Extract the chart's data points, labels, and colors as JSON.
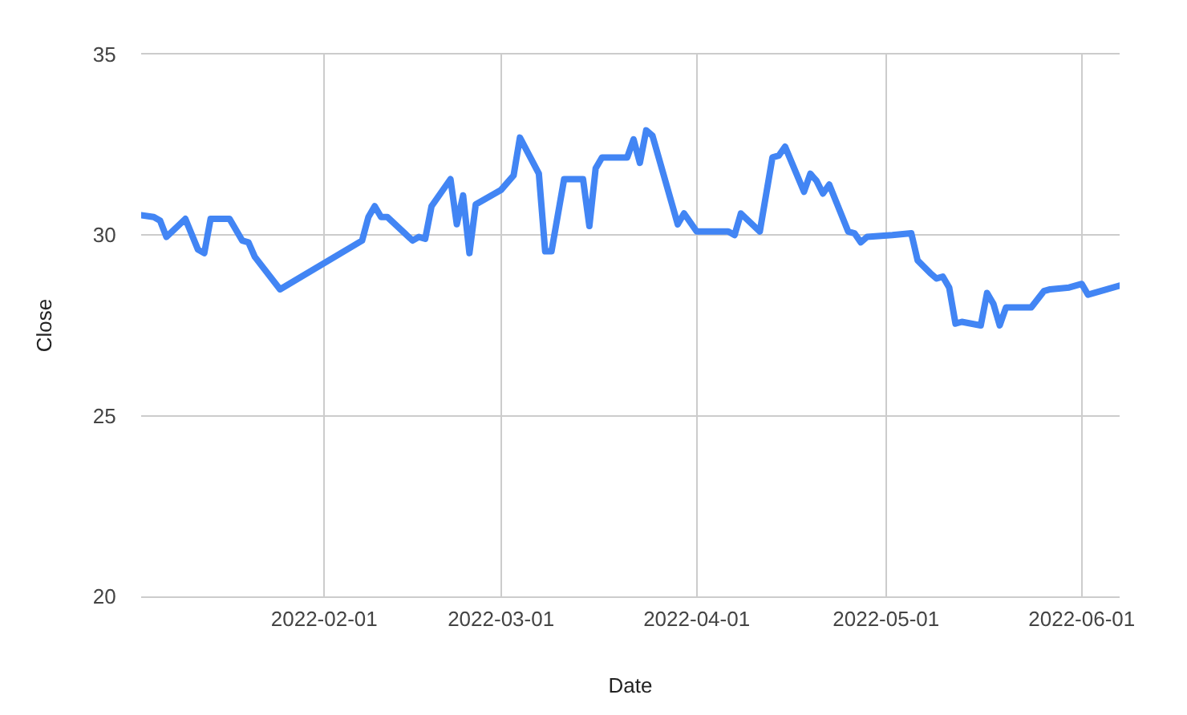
{
  "chart_data": {
    "type": "line",
    "xlabel": "Date",
    "ylabel": "Close",
    "x": [
      "2022-01-03",
      "2022-01-05",
      "2022-01-06",
      "2022-01-07",
      "2022-01-10",
      "2022-01-12",
      "2022-01-13",
      "2022-01-14",
      "2022-01-17",
      "2022-01-19",
      "2022-01-20",
      "2022-01-21",
      "2022-01-25",
      "2022-02-07",
      "2022-02-08",
      "2022-02-09",
      "2022-02-10",
      "2022-02-11",
      "2022-02-15",
      "2022-02-16",
      "2022-02-17",
      "2022-02-18",
      "2022-02-21",
      "2022-02-22",
      "2022-02-23",
      "2022-02-24",
      "2022-02-25",
      "2022-03-01",
      "2022-03-03",
      "2022-03-04",
      "2022-03-07",
      "2022-03-08",
      "2022-03-09",
      "2022-03-11",
      "2022-03-14",
      "2022-03-15",
      "2022-03-16",
      "2022-03-17",
      "2022-03-21",
      "2022-03-22",
      "2022-03-23",
      "2022-03-24",
      "2022-03-25",
      "2022-03-29",
      "2022-03-30",
      "2022-04-01",
      "2022-04-06",
      "2022-04-07",
      "2022-04-08",
      "2022-04-11",
      "2022-04-13",
      "2022-04-14",
      "2022-04-15",
      "2022-04-18",
      "2022-04-19",
      "2022-04-20",
      "2022-04-21",
      "2022-04-22",
      "2022-04-25",
      "2022-04-26",
      "2022-04-27",
      "2022-04-28",
      "2022-05-02",
      "2022-05-05",
      "2022-05-06",
      "2022-05-08",
      "2022-05-09",
      "2022-05-10",
      "2022-05-11",
      "2022-05-12",
      "2022-05-13",
      "2022-05-16",
      "2022-05-17",
      "2022-05-18",
      "2022-05-19",
      "2022-05-20",
      "2022-05-24",
      "2022-05-26",
      "2022-05-27",
      "2022-05-30",
      "2022-06-01",
      "2022-06-02",
      "2022-06-07"
    ],
    "series": [
      {
        "color": "#4285f4",
        "values": [
          30.55,
          30.5,
          30.4,
          29.95,
          30.45,
          29.6,
          29.5,
          30.45,
          30.45,
          29.85,
          29.8,
          29.4,
          28.5,
          29.85,
          30.5,
          30.8,
          30.5,
          30.5,
          29.85,
          29.95,
          29.9,
          30.8,
          31.55,
          30.3,
          31.1,
          29.5,
          30.85,
          31.25,
          31.65,
          32.7,
          31.7,
          29.55,
          29.55,
          31.55,
          31.55,
          30.25,
          31.85,
          32.15,
          32.15,
          32.65,
          32.0,
          32.9,
          32.75,
          30.3,
          30.6,
          30.1,
          30.1,
          30.0,
          30.6,
          30.1,
          32.15,
          32.2,
          32.45,
          31.2,
          31.7,
          31.5,
          31.15,
          31.4,
          30.1,
          30.05,
          29.8,
          29.95,
          30.0,
          30.05,
          29.3,
          28.95,
          28.8,
          28.85,
          28.55,
          27.55,
          27.6,
          27.5,
          28.4,
          28.1,
          27.5,
          28.0,
          28.0,
          28.45,
          28.5,
          28.55,
          28.65,
          28.35,
          28.6
        ]
      }
    ],
    "xlim": [
      "2022-01-03",
      "2022-06-07"
    ],
    "ylim": [
      20,
      35
    ],
    "xticks": [
      "2022-02-01",
      "2022-03-01",
      "2022-04-01",
      "2022-05-01",
      "2022-06-01"
    ],
    "yticks": [
      20,
      25,
      30,
      35
    ],
    "grid": true,
    "legend": false,
    "marker": "none",
    "line_style": "solid"
  }
}
